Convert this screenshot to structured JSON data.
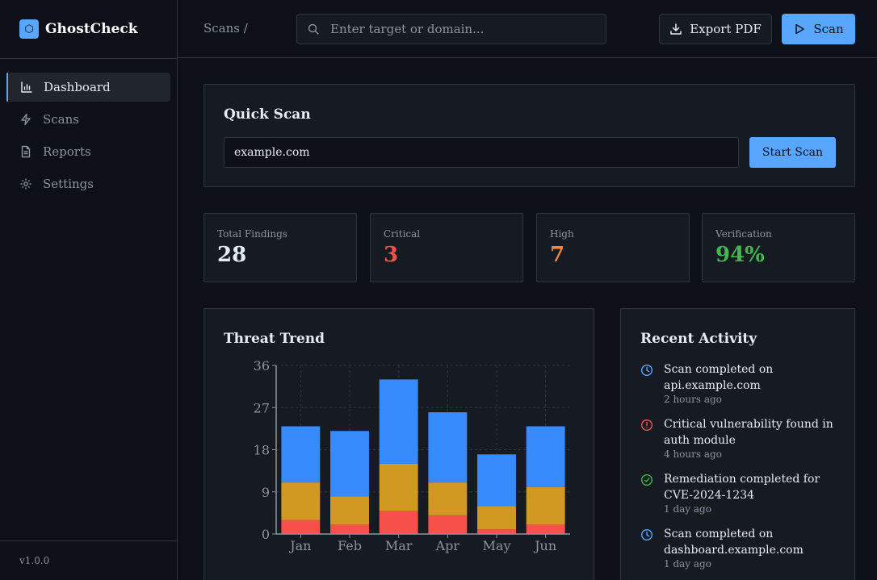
{
  "brand": {
    "name": "GhostCheck",
    "logo_glyph": "⬡"
  },
  "sidebar": {
    "items": [
      {
        "label": "Dashboard",
        "icon": "bar-chart-icon",
        "active": true
      },
      {
        "label": "Scans",
        "icon": "lightning-icon",
        "active": false
      },
      {
        "label": "Reports",
        "icon": "document-icon",
        "active": false
      },
      {
        "label": "Settings",
        "icon": "gear-icon",
        "active": false
      }
    ],
    "version": "v1.0.0"
  },
  "header": {
    "breadcrumb": "Scans /",
    "search_placeholder": "Enter target or domain...",
    "export_label": "Export PDF",
    "scan_label": "Scan"
  },
  "quick_scan": {
    "title": "Quick Scan",
    "input_value": "example.com",
    "button_label": "Start Scan"
  },
  "stats": [
    {
      "label": "Total Findings",
      "value": "28",
      "color": "#e6edf3"
    },
    {
      "label": "Critical",
      "value": "3",
      "color": "#f85149"
    },
    {
      "label": "High",
      "value": "7",
      "color": "#f0883e"
    },
    {
      "label": "Verification",
      "value": "94%",
      "color": "#3fb950"
    }
  ],
  "trend": {
    "title": "Threat Trend"
  },
  "chart_data": {
    "type": "bar",
    "stacked": true,
    "categories": [
      "Jan",
      "Feb",
      "Mar",
      "Apr",
      "May",
      "Jun"
    ],
    "series": [
      {
        "color": "#f85149",
        "values": [
          3,
          2,
          5,
          4,
          1,
          2
        ]
      },
      {
        "color": "#d29922",
        "values": [
          8,
          6,
          10,
          7,
          5,
          8
        ]
      },
      {
        "color": "#388bfd",
        "values": [
          12,
          14,
          18,
          15,
          11,
          13
        ]
      }
    ],
    "yticks": [
      "0",
      "9",
      "18",
      "27",
      "36"
    ],
    "ylim": [
      0,
      36
    ],
    "grid": true
  },
  "activity": {
    "title": "Recent Activity",
    "items": [
      {
        "text": "Scan completed on api.example.com",
        "time": "2 hours ago",
        "icon": "clock-icon",
        "color": "#58a6ff"
      },
      {
        "text": "Critical vulnerability found in auth module",
        "time": "4 hours ago",
        "icon": "alert-icon",
        "color": "#f85149"
      },
      {
        "text": "Remediation completed for CVE-2024-1234",
        "time": "1 day ago",
        "icon": "check-circle-icon",
        "color": "#3fb950"
      },
      {
        "text": "Scan completed on dashboard.example.com",
        "time": "1 day ago",
        "icon": "clock-icon",
        "color": "#58a6ff"
      }
    ]
  }
}
